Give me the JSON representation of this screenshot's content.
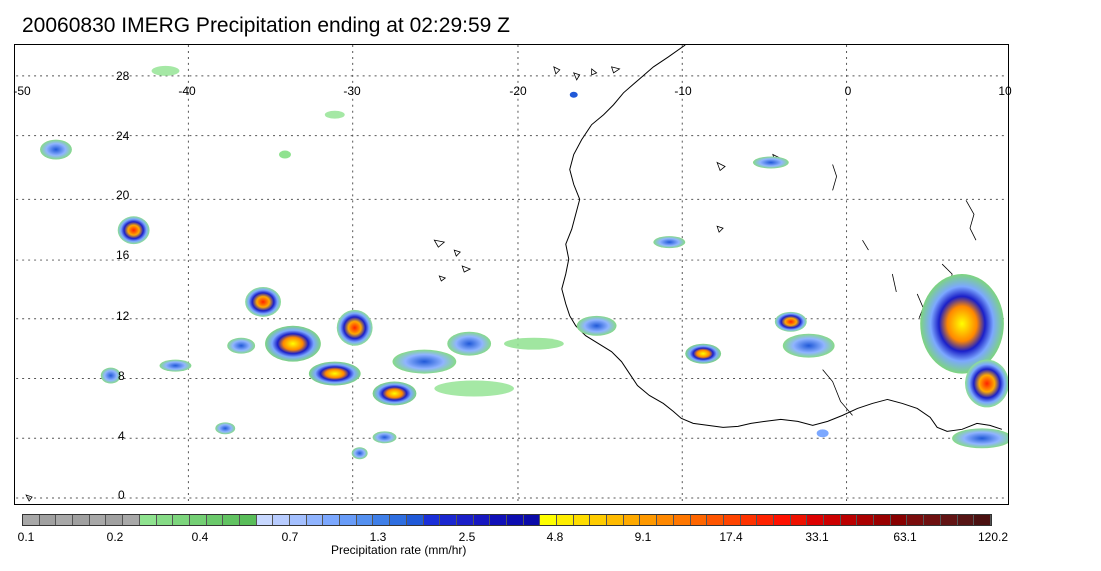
{
  "title": "20060830 IMERG Precipitation ending at 02:29:59 Z",
  "map": {
    "lon_labels": [
      "-50",
      "-40",
      "-30",
      "-20",
      "-10",
      "0",
      "10"
    ],
    "lat_labels": [
      "28",
      "24",
      "20",
      "16",
      "12",
      "8",
      "4",
      "0"
    ]
  },
  "colorbar": {
    "title": "Precipitation rate (mm/hr)",
    "tick_labels": [
      "0.1",
      "0.2",
      "0.4",
      "0.7",
      "1.3",
      "2.5",
      "4.8",
      "9.1",
      "17.4",
      "33.1",
      "63.1",
      "120.2"
    ],
    "colors": [
      "#a8a8a8",
      "#a0a0a0",
      "#a8a8a8",
      "#a0a0a0",
      "#a8a8a8",
      "#a0a0a0",
      "#a8a8a8",
      "#8fe28f",
      "#86db86",
      "#7dd57d",
      "#74cf74",
      "#6bc96b",
      "#62c362",
      "#59bd59",
      "#c8d8ff",
      "#b8ccff",
      "#a4c0ff",
      "#90b4ff",
      "#7ca8ff",
      "#689cf8",
      "#5490f0",
      "#3f7fe8",
      "#2e6ee0",
      "#2059d8",
      "#1a2fd8",
      "#1a27d0",
      "#1a1fc8",
      "#1717c0",
      "#1010b8",
      "#0c0cb0",
      "#0a0aa8",
      "#ffff00",
      "#ffee00",
      "#ffdd00",
      "#ffcc00",
      "#ffbb00",
      "#ffaa00",
      "#ff9900",
      "#ff8800",
      "#ff7700",
      "#ff6600",
      "#ff5500",
      "#ff4400",
      "#ff3300",
      "#ff2200",
      "#ff1100",
      "#ee1100",
      "#dd0000",
      "#cc0000",
      "#bb0000",
      "#aa0000",
      "#990000",
      "#880000",
      "#7a0c0c",
      "#6e1010",
      "#621414",
      "#561414",
      "#4a1010"
    ]
  }
}
